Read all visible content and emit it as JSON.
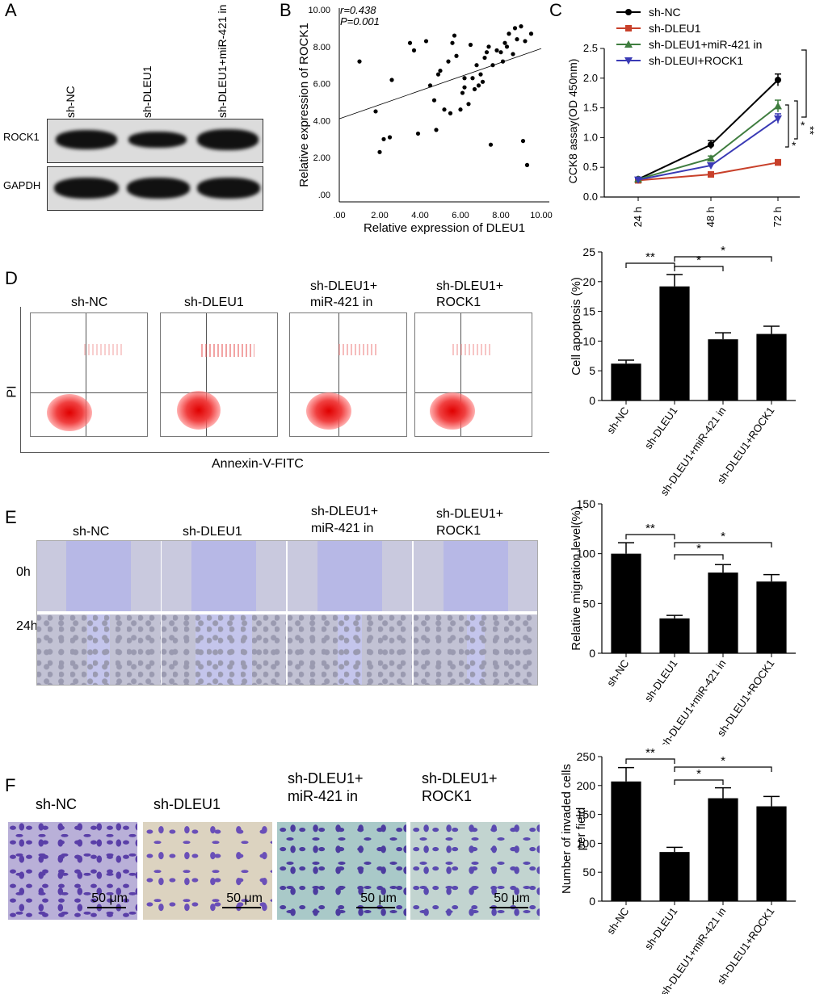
{
  "panel_letters": {
    "A": "A",
    "B": "B",
    "C": "C",
    "D": "D",
    "E": "E",
    "F": "F"
  },
  "panel_a": {
    "lanes": [
      "sh-NC",
      "sh-DLEU1",
      "sh-DLEU1+miR-421 in"
    ],
    "rows": [
      "ROCK1",
      "GAPDH"
    ]
  },
  "panel_d": {
    "groups": [
      "sh-NC",
      "sh-DLEU1",
      "sh-DLEU1+\nmiR-421 in",
      "sh-DLEU1+\nROCK1"
    ],
    "group_line1": [
      "sh-NC",
      "sh-DLEU1",
      "sh-DLEU1+",
      "sh-DLEU1+"
    ],
    "group_line2": [
      "",
      "",
      "miR-421 in",
      "ROCK1"
    ],
    "ylabel": "PI",
    "xlabel": "Annexin-V-FITC"
  },
  "panel_e": {
    "groups_line1": [
      "sh-NC",
      "sh-DLEU1",
      "sh-DLEU1+",
      "sh-DLEU1+"
    ],
    "groups_line2": [
      "",
      "",
      "miR-421 in",
      "ROCK1"
    ],
    "times": [
      "0h",
      "24h"
    ]
  },
  "panel_f": {
    "groups_line1": [
      "sh-NC",
      "sh-DLEU1",
      "sh-DLEU1+",
      "sh-DLEU1+"
    ],
    "groups_line2": [
      "",
      "",
      "miR-421 in",
      "ROCK1"
    ],
    "scale": "50 μm"
  },
  "chart_data": [
    {
      "type": "scatter",
      "panel": "B",
      "xlabel": "Relative expression of DLEU1",
      "ylabel": "Relative expression of ROCK1",
      "annotation_r": "r=0.438",
      "annotation_p": "P=0.001",
      "xticks": [
        ".00",
        "2.00",
        "4.00",
        "6.00",
        "8.00",
        "10.00"
      ],
      "yticks": [
        ".00",
        "2.00",
        "4.00",
        "6.00",
        "8.00",
        "10.00"
      ],
      "xlim": [
        0,
        10
      ],
      "ylim": [
        0,
        10
      ],
      "fit_line": {
        "x": [
          0,
          10
        ],
        "y": [
          4.1,
          7.9
        ]
      },
      "points": [
        [
          1.0,
          7.2
        ],
        [
          1.8,
          4.5
        ],
        [
          2.0,
          2.3
        ],
        [
          2.2,
          3.0
        ],
        [
          2.5,
          3.1
        ],
        [
          2.6,
          6.2
        ],
        [
          3.5,
          8.2
        ],
        [
          3.7,
          7.8
        ],
        [
          3.9,
          3.3
        ],
        [
          4.3,
          8.3
        ],
        [
          4.5,
          5.9
        ],
        [
          4.7,
          5.1
        ],
        [
          4.8,
          3.5
        ],
        [
          4.9,
          6.5
        ],
        [
          5.0,
          6.7
        ],
        [
          5.2,
          4.6
        ],
        [
          5.4,
          7.2
        ],
        [
          5.5,
          4.4
        ],
        [
          5.6,
          8.2
        ],
        [
          5.7,
          8.6
        ],
        [
          5.8,
          7.5
        ],
        [
          6.0,
          4.6
        ],
        [
          6.1,
          5.5
        ],
        [
          6.2,
          5.8
        ],
        [
          6.2,
          6.3
        ],
        [
          6.4,
          4.9
        ],
        [
          6.5,
          8.1
        ],
        [
          6.6,
          6.3
        ],
        [
          6.7,
          5.7
        ],
        [
          6.8,
          7.0
        ],
        [
          6.9,
          5.9
        ],
        [
          7.0,
          6.5
        ],
        [
          7.1,
          6.1
        ],
        [
          7.2,
          7.4
        ],
        [
          7.3,
          7.7
        ],
        [
          7.4,
          8.0
        ],
        [
          7.5,
          2.7
        ],
        [
          7.6,
          7.0
        ],
        [
          7.8,
          7.8
        ],
        [
          8.0,
          7.7
        ],
        [
          8.1,
          7.2
        ],
        [
          8.2,
          8.2
        ],
        [
          8.3,
          8.0
        ],
        [
          8.4,
          8.7
        ],
        [
          8.6,
          7.6
        ],
        [
          8.7,
          9.0
        ],
        [
          8.8,
          8.4
        ],
        [
          9.0,
          9.1
        ],
        [
          9.1,
          2.9
        ],
        [
          9.2,
          8.3
        ],
        [
          9.3,
          1.6
        ],
        [
          9.5,
          8.7
        ]
      ]
    },
    {
      "type": "line",
      "panel": "C",
      "ylabel": "CCK8 assay(OD 450nm)",
      "categories": [
        "24 h",
        "48 h",
        "72 h"
      ],
      "ylim": [
        0,
        2.5
      ],
      "yticks": [
        "0.0",
        "0.5",
        "1.0",
        "1.5",
        "2.0",
        "2.5"
      ],
      "series": [
        {
          "name": "sh-NC",
          "values": [
            0.3,
            0.88,
            1.97
          ],
          "err": [
            0.02,
            0.07,
            0.1
          ],
          "color": "#000000",
          "marker": "circle"
        },
        {
          "name": "sh-DLEU1",
          "values": [
            0.28,
            0.38,
            0.58
          ],
          "err": [
            0.02,
            0.03,
            0.05
          ],
          "color": "#c8402a",
          "marker": "square"
        },
        {
          "name": "sh-DLEU1+miR-421 in",
          "values": [
            0.3,
            0.65,
            1.53
          ],
          "err": [
            0.02,
            0.04,
            0.1
          ],
          "color": "#3f7d3f",
          "marker": "triangle-up"
        },
        {
          "name": "sh-DLEUI+ROCK1",
          "values": [
            0.29,
            0.53,
            1.32
          ],
          "err": [
            0.02,
            0.04,
            0.08
          ],
          "color": "#3a3ab5",
          "marker": "triangle-down"
        }
      ],
      "significance": [
        "*",
        "*",
        "**"
      ]
    },
    {
      "type": "bar",
      "panel": "D",
      "ylabel": "Cell apoptosis (%)",
      "categories": [
        "sh-NC",
        "sh-DLEU1",
        "sh-DLEU1+miR-421 in",
        "sh-DLEU1+ROCK1"
      ],
      "values": [
        6.2,
        19.2,
        10.3,
        11.2
      ],
      "err": [
        0.6,
        2.0,
        1.1,
        1.3
      ],
      "ylim": [
        0,
        25
      ],
      "yticks": [
        "0",
        "5",
        "10",
        "15",
        "20",
        "25"
      ],
      "significance": [
        {
          "pair": [
            0,
            1
          ],
          "label": "**"
        },
        {
          "pair": [
            1,
            2
          ],
          "label": "*"
        },
        {
          "pair": [
            1,
            3
          ],
          "label": "*"
        }
      ]
    },
    {
      "type": "bar",
      "panel": "E",
      "ylabel": "Relative migration level(%)",
      "categories": [
        "sh-NC",
        "sh-DLEU1",
        "sh-DLEU1+miR-421 in",
        "sh-DLEU1+ROCK1"
      ],
      "values": [
        100,
        35,
        81,
        72
      ],
      "err": [
        11,
        3,
        8,
        7
      ],
      "ylim": [
        0,
        150
      ],
      "yticks": [
        "0",
        "50",
        "100",
        "150"
      ],
      "significance": [
        {
          "pair": [
            0,
            1
          ],
          "label": "**"
        },
        {
          "pair": [
            1,
            2
          ],
          "label": "*"
        },
        {
          "pair": [
            1,
            3
          ],
          "label": "*"
        }
      ]
    },
    {
      "type": "bar",
      "panel": "F",
      "ylabel": "Number of invaded cells\nper field",
      "ylabel_lines": [
        "Number of invaded cells",
        "per field"
      ],
      "categories": [
        "sh-NC",
        "sh-DLEU1",
        "sh-DLEU1+miR-421 in",
        "sh-DLEU1+ROCK1"
      ],
      "values": [
        207,
        85,
        178,
        164
      ],
      "err": [
        24,
        8,
        18,
        17
      ],
      "ylim": [
        0,
        250
      ],
      "yticks": [
        "0",
        "50",
        "100",
        "150",
        "200",
        "250"
      ],
      "significance": [
        {
          "pair": [
            0,
            1
          ],
          "label": "**"
        },
        {
          "pair": [
            1,
            2
          ],
          "label": "*"
        },
        {
          "pair": [
            1,
            3
          ],
          "label": "*"
        }
      ]
    }
  ]
}
